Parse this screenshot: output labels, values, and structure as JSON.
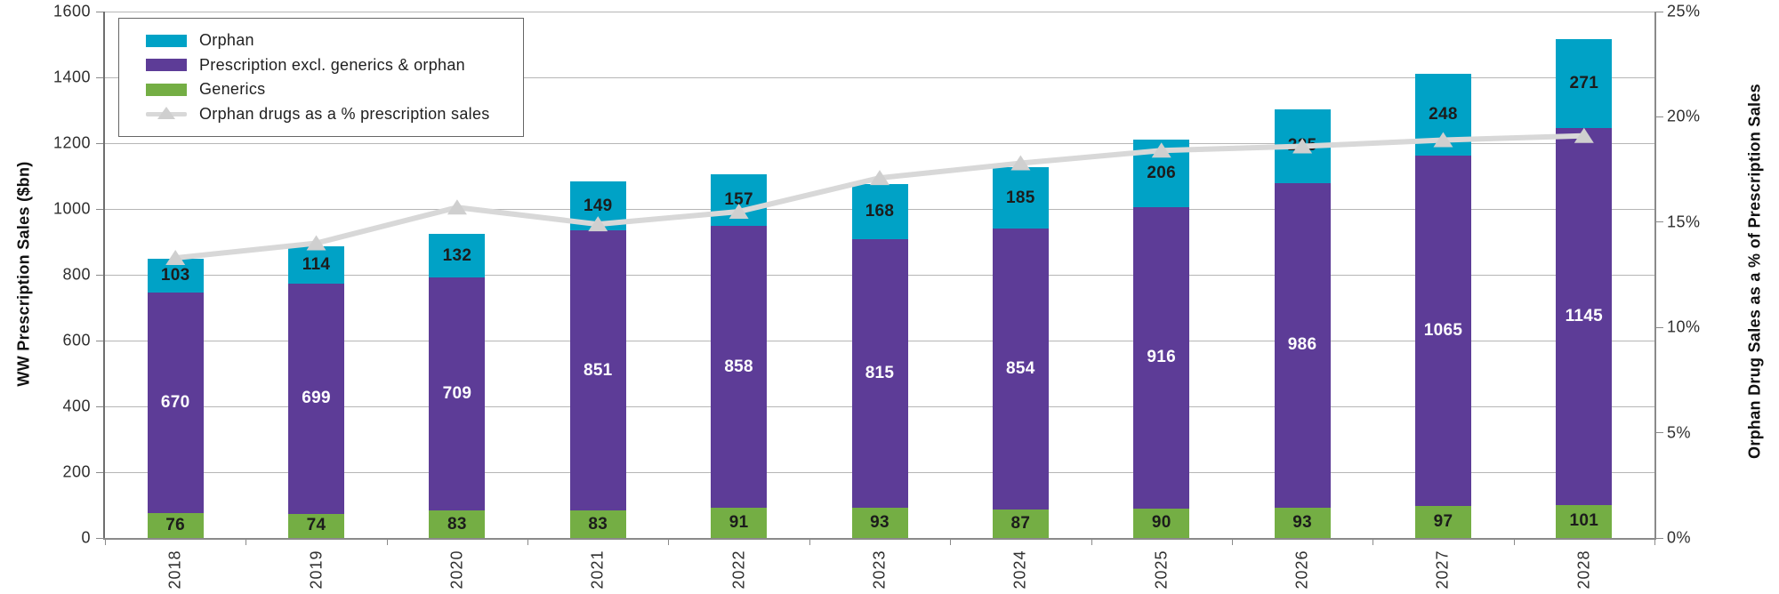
{
  "chart_data": {
    "type": "bar",
    "stacked": true,
    "title": "",
    "categories": [
      "2018",
      "2019",
      "2020",
      "2021",
      "2022",
      "2023",
      "2024",
      "2025",
      "2026",
      "2027",
      "2028"
    ],
    "series": [
      {
        "name": "Generics",
        "color": "#74ae44",
        "text_color": "#1c1c1c",
        "values": [
          76,
          74,
          83,
          83,
          91,
          93,
          87,
          90,
          93,
          97,
          101
        ]
      },
      {
        "name": "Prescription excl. generics & orphan",
        "color": "#5d3c97",
        "text_color": "#ffffff",
        "values": [
          670,
          699,
          709,
          851,
          858,
          815,
          854,
          916,
          986,
          1065,
          1145
        ]
      },
      {
        "name": "Orphan",
        "color": "#00a2c6",
        "text_color": "#1c1c1c",
        "values": [
          103,
          114,
          132,
          149,
          157,
          168,
          185,
          206,
          225,
          248,
          271
        ]
      }
    ],
    "line": {
      "name": "Orphan drugs  as a % prescription sales",
      "axis": "right",
      "color": "#d8d8d8",
      "marker": "triangle",
      "marker_color": "#cfcfcf",
      "values": [
        13.3,
        14.0,
        15.7,
        14.9,
        15.5,
        17.1,
        17.8,
        18.4,
        18.6,
        18.9,
        19.1
      ]
    },
    "left_axis": {
      "title": "WW Prescription Sales ($bn)",
      "min": 0,
      "max": 1600,
      "step": 200,
      "tick_labels": [
        "0",
        "200",
        "400",
        "600",
        "800",
        "1000",
        "1200",
        "1400",
        "1600"
      ]
    },
    "right_axis": {
      "title": "Orphan Drug Sales as a % of Prescription Sales",
      "min": 0,
      "max": 25,
      "step": 5,
      "tick_labels": [
        "0%",
        "5%",
        "10%",
        "15%",
        "20%",
        "25%"
      ]
    },
    "legend": {
      "position": "top-left",
      "items": [
        {
          "label": "Orphan",
          "swatch": "rect",
          "color": "#00a2c6"
        },
        {
          "label": "Prescription excl. generics & orphan",
          "swatch": "rect",
          "color": "#5d3c97"
        },
        {
          "label": "Generics",
          "swatch": "rect",
          "color": "#74ae44"
        },
        {
          "label": "Orphan drugs  as a % prescription sales",
          "swatch": "line-triangle",
          "color": "#d8d8d8"
        }
      ]
    },
    "grid": {
      "horizontal": true,
      "color": "#b6b6b6"
    }
  }
}
